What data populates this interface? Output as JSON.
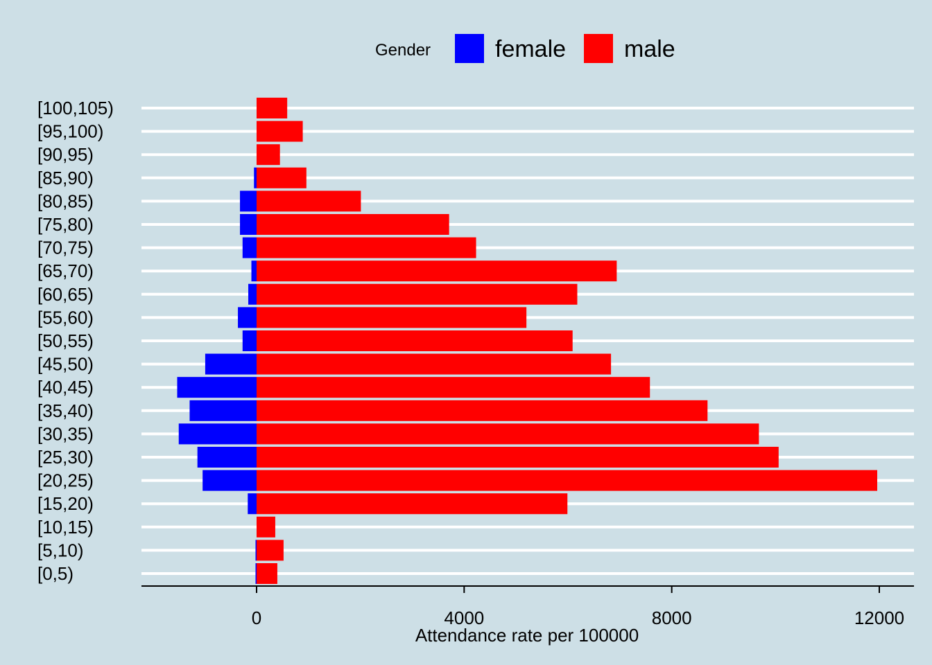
{
  "chart_data": {
    "type": "bar",
    "orientation": "horizontal",
    "stacked": "diverging",
    "categories": [
      "[0,5)",
      "[5,10)",
      "[10,15)",
      "[15,20)",
      "[20,25)",
      "[25,30)",
      "[30,35)",
      "[35,40)",
      "[40,45)",
      "[45,50)",
      "[50,55)",
      "[55,60)",
      "[60,65)",
      "[65,70)",
      "[70,75)",
      "[75,80)",
      "[80,85)",
      "[85,90)",
      "[90,95)",
      "[95,100)",
      "[100,105)"
    ],
    "series": [
      {
        "name": "female",
        "color": "#0000ff",
        "values": [
          -20,
          -20,
          0,
          -170,
          -1040,
          -1140,
          -1500,
          -1290,
          -1530,
          -990,
          -270,
          -360,
          -160,
          -100,
          -270,
          -320,
          -320,
          -50,
          0,
          0,
          0
        ]
      },
      {
        "name": "male",
        "color": "#ff0000",
        "values": [
          400,
          520,
          360,
          5990,
          11960,
          10060,
          9680,
          8690,
          7580,
          6830,
          6090,
          5200,
          6180,
          6940,
          4230,
          3710,
          2010,
          960,
          450,
          890,
          590
        ]
      }
    ],
    "title": "",
    "xlabel": "Attendance rate per 100000",
    "ylabel": "",
    "xlim": [
      -2200,
      12650
    ],
    "xticks": [
      0,
      4000,
      8000,
      12000
    ],
    "xtick_labels": [
      "0",
      "4000",
      "8000",
      "12000"
    ],
    "grid": "horizontal-major",
    "legend": {
      "title": "Gender",
      "position": "top",
      "entries": [
        "female",
        "male"
      ]
    }
  },
  "colors": {
    "background": "#cddfe6",
    "gridline": "#ffffff",
    "female": "#0000ff",
    "male": "#ff0000"
  }
}
